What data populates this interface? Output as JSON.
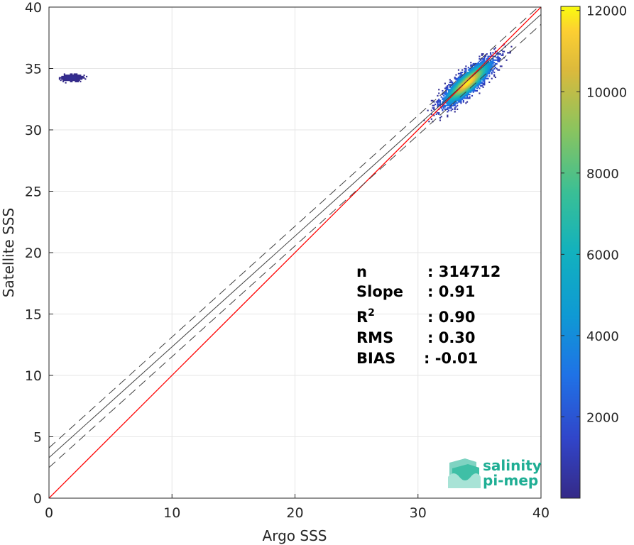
{
  "chart_data": {
    "type": "scatter",
    "subtype": "2d-density-histogram",
    "title": "",
    "xlabel": "Argo SSS",
    "ylabel": "Satellite SSS",
    "xlim": [
      0,
      40
    ],
    "ylim": [
      0,
      40
    ],
    "xticks": [
      0,
      10,
      20,
      30,
      40
    ],
    "yticks": [
      0,
      5,
      10,
      15,
      20,
      25,
      30,
      35,
      40
    ],
    "grid": true,
    "lines": [
      {
        "name": "identity",
        "style": "solid",
        "color": "#ff0000",
        "points": [
          [
            0,
            0
          ],
          [
            40,
            40
          ]
        ]
      },
      {
        "name": "regression",
        "style": "solid",
        "color": "#404040",
        "points": [
          [
            0,
            3.3
          ],
          [
            40,
            39.4
          ]
        ]
      },
      {
        "name": "regression-upper",
        "style": "dashed",
        "color": "#404040",
        "points": [
          [
            0,
            4.1
          ],
          [
            40,
            40.2
          ]
        ]
      },
      {
        "name": "regression-lower",
        "style": "dashed",
        "color": "#404040",
        "points": [
          [
            0,
            2.5
          ],
          [
            40,
            38.6
          ]
        ]
      }
    ],
    "density_clusters": [
      {
        "center": [
          34.0,
          33.8
        ],
        "spread_along": 1.6,
        "spread_across": 0.45,
        "axis_angle_deg": 42,
        "max_count": 12000
      },
      {
        "center": [
          1.8,
          34.2
        ],
        "spread_along": 0.5,
        "spread_across": 0.15,
        "axis_angle_deg": 0,
        "max_count": 300
      }
    ],
    "colorbar": {
      "min": 0,
      "max": 12100,
      "ticks": [
        2000,
        4000,
        6000,
        8000,
        10000,
        12000
      ],
      "tick_labels": [
        "2000",
        "4000",
        "6000",
        "8000",
        "10000",
        "12000"
      ],
      "colormap": "parula"
    },
    "stats": [
      {
        "label": "n",
        "sep": ": 314712"
      },
      {
        "label": "Slope",
        "sep": ": 0.91"
      },
      {
        "label": "R",
        "sup": "2",
        "sep": ": 0.90"
      },
      {
        "label": "RMS",
        "sep": ": 0.30"
      },
      {
        "label": "BIAS",
        "sep": ": -0.01"
      }
    ]
  },
  "logo": {
    "line1": "salinity",
    "line2": "pi-mep",
    "color": "#1fae94"
  }
}
